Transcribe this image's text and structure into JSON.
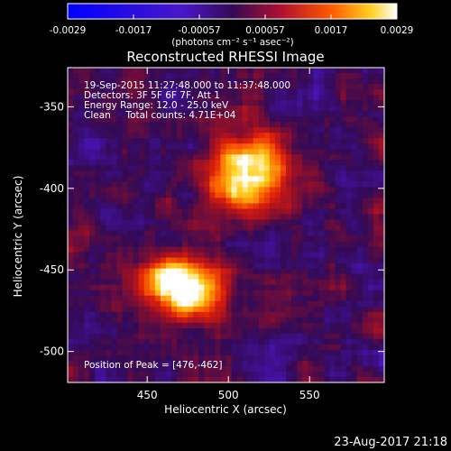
{
  "chart_data": {
    "type": "heatmap",
    "title": "Reconstructed RHESSI Image",
    "xlabel": "Heliocentric X (arcsec)",
    "ylabel": "Heliocentric Y (arcsec)",
    "xlim": [
      401,
      596
    ],
    "ylim": [
      -519,
      -326
    ],
    "x_ticks": [
      450,
      500,
      550
    ],
    "y_ticks": [
      -350,
      -400,
      -450,
      -500
    ],
    "colorbar": {
      "ticks": [
        "-0.0029",
        "-0.0017",
        "-0.00057",
        "0.00057",
        "0.0017",
        "0.0029"
      ],
      "range": [
        -0.0029,
        0.0029
      ],
      "unit_label": "(photons cm⁻² s⁻¹ asec⁻²)"
    },
    "annotations": [
      "19-Sep-2015 11:27:48.000 to 11:37:48.000",
      "Detectors: 3F 5F 6F 7F, Att 1",
      "Energy Range: 12.0 - 25.0 keV",
      "Clean     Total counts: 4.71E+04"
    ],
    "peak_label": "Position of Peak = [476,-462]",
    "sources": [
      {
        "x": 512,
        "y": -392,
        "rx": 18,
        "ry": 18,
        "amp": 0.0029
      },
      {
        "x": 476,
        "y": -462,
        "rx": 14,
        "ry": 12,
        "amp": 0.0029
      },
      {
        "x": 458,
        "y": -455,
        "rx": 14,
        "ry": 8,
        "amp": 0.0016
      }
    ]
  },
  "timestamp": "23-Aug-2017 21:18"
}
